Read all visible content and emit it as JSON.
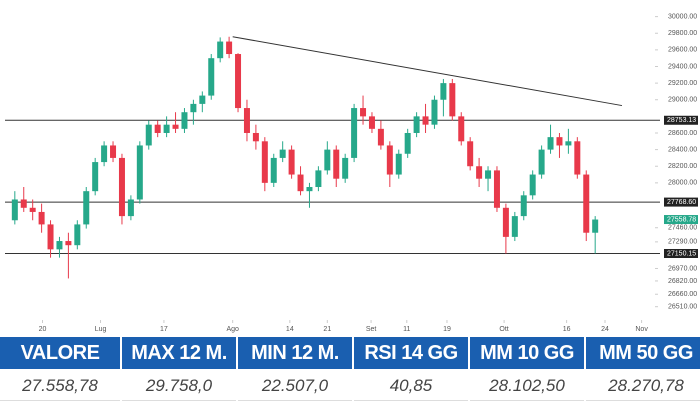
{
  "chart_data": {
    "type": "candlestick",
    "open": [
      27550,
      27800,
      27700,
      27650,
      27500,
      27200,
      27300,
      27250,
      27500,
      27900,
      28250,
      28450,
      28300,
      27600,
      27800,
      28450,
      28700,
      28600,
      28700,
      28650,
      28850,
      28950,
      29050,
      29500,
      29700,
      29550,
      28900,
      28600,
      28500,
      28000,
      28300,
      28400,
      28100,
      27900,
      27950,
      28150,
      28400,
      28050,
      28300,
      28900,
      28800,
      28650,
      28450,
      28100,
      28350,
      28600,
      28800,
      28700,
      29000,
      29200,
      28800,
      28500,
      28200,
      28050,
      28150,
      27700,
      27350,
      27600,
      27850,
      28100,
      28400,
      28550,
      28450,
      28500,
      28100,
      27400
    ],
    "high": [
      27900,
      27950,
      27800,
      27750,
      27550,
      27350,
      27400,
      27550,
      27950,
      28300,
      28500,
      28500,
      28350,
      27850,
      28500,
      28750,
      28750,
      28800,
      28850,
      28900,
      29000,
      29100,
      29550,
      29750,
      29758,
      29560,
      29000,
      28700,
      28550,
      28350,
      28500,
      28450,
      28200,
      28000,
      28200,
      28500,
      28450,
      28350,
      28950,
      29050,
      28850,
      28750,
      28500,
      28400,
      28650,
      28850,
      28950,
      29050,
      29250,
      29250,
      28850,
      28550,
      28300,
      28200,
      28200,
      27750,
      27650,
      27900,
      28150,
      28450,
      28700,
      28600,
      28650,
      28550,
      28150,
      27600
    ],
    "low": [
      27500,
      27650,
      27550,
      27400,
      27100,
      27100,
      26850,
      27200,
      27450,
      27850,
      28200,
      28250,
      27500,
      27550,
      27750,
      28400,
      28550,
      28550,
      28600,
      28600,
      28700,
      28850,
      29000,
      29450,
      29500,
      28850,
      28500,
      28400,
      27900,
      27950,
      28250,
      28050,
      27850,
      27700,
      27900,
      28100,
      27950,
      28000,
      28250,
      28700,
      28600,
      28400,
      27950,
      28050,
      28300,
      28550,
      28600,
      28650,
      28800,
      28750,
      28450,
      28150,
      27950,
      27900,
      27650,
      27150,
      27300,
      27550,
      27800,
      28050,
      28350,
      28300,
      28350,
      28050,
      27300,
      27150
    ],
    "close": [
      27800,
      27700,
      27650,
      27500,
      27200,
      27300,
      27250,
      27500,
      27900,
      28250,
      28450,
      28300,
      27600,
      27800,
      28450,
      28700,
      28600,
      28700,
      28650,
      28850,
      28950,
      29050,
      29500,
      29700,
      29550,
      28900,
      28600,
      28500,
      28000,
      28300,
      28400,
      28100,
      27900,
      27950,
      28150,
      28400,
      28050,
      28300,
      28900,
      28800,
      28650,
      28450,
      28100,
      28350,
      28600,
      28800,
      28700,
      29000,
      29200,
      28800,
      28500,
      28200,
      28050,
      28150,
      27700,
      27350,
      27600,
      27850,
      28100,
      28400,
      28550,
      28450,
      28500,
      28100,
      27400,
      27558.78
    ],
    "up_color": "#26a88a",
    "down_color": "#e8394a",
    "xlim": [
      -1.1,
      71.7
    ],
    "xticks": [
      {
        "value": 3.1,
        "label": "20"
      },
      {
        "value": 9.6,
        "label": "Lug"
      },
      {
        "value": 16.7,
        "label": "17"
      },
      {
        "value": 24.4,
        "label": "Ago"
      },
      {
        "value": 30.8,
        "label": "14"
      },
      {
        "value": 35,
        "label": "21"
      },
      {
        "value": 39.9,
        "label": "Set"
      },
      {
        "value": 43.9,
        "label": "11"
      },
      {
        "value": 48.4,
        "label": "19"
      },
      {
        "value": 54.8,
        "label": "Ott"
      },
      {
        "value": 61.8,
        "label": "16"
      },
      {
        "value": 66.1,
        "label": "24"
      },
      {
        "value": 70.2,
        "label": "Nov"
      }
    ],
    "ylim": [
      26350,
      30200
    ],
    "yticks": [
      {
        "value": 30000,
        "label": "30000.00"
      },
      {
        "value": 29800,
        "label": "29800.00"
      },
      {
        "value": 29600,
        "label": "29600.00"
      },
      {
        "value": 29400,
        "label": "29400.00"
      },
      {
        "value": 29200,
        "label": "29200.00"
      },
      {
        "value": 29000,
        "label": "29000.00"
      },
      {
        "value": 28600,
        "label": "28600.00"
      },
      {
        "value": 28400,
        "label": "28400.00"
      },
      {
        "value": 28200,
        "label": "28200.00"
      },
      {
        "value": 28000,
        "label": "28000.00"
      },
      {
        "value": 27460,
        "label": "27460.00"
      },
      {
        "value": 27290,
        "label": "27290.00"
      },
      {
        "value": 26970,
        "label": "26970.00"
      },
      {
        "value": 26820,
        "label": "26820.00"
      },
      {
        "value": 26660,
        "label": "26660.00"
      },
      {
        "value": 26510,
        "label": "26510.00"
      }
    ],
    "hlines": [
      {
        "value": 28753.13,
        "label": "28753.13"
      },
      {
        "value": 27768.6,
        "label": "27768.60"
      },
      {
        "value": 27150.15,
        "label": "27150.15"
      }
    ],
    "last_price": {
      "value": 27558.78,
      "label": "27558.78"
    },
    "trendline": {
      "x": [
        24.4,
        68
      ],
      "y": [
        29758,
        28930
      ]
    }
  },
  "table": {
    "headers": [
      "VALORE",
      "MAX 12 M.",
      "MIN 12 M.",
      "RSI 14 GG",
      "MM 10 GG",
      "MM 50 GG"
    ],
    "values": [
      "27.558,78",
      "29.758,0",
      "22.507,0",
      "40,85",
      "28.102,50",
      "28.270,78"
    ]
  }
}
